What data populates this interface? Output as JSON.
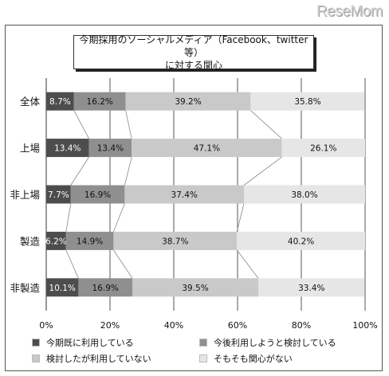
{
  "watermark": "ReseMom",
  "chart_data": {
    "type": "bar",
    "orientation": "horizontal",
    "stacked": true,
    "title_lines": [
      "今期採用のソーシャルメディア（Facebook、twitter等）",
      "に対する関心"
    ],
    "categories": [
      "全体",
      "上場",
      "非上場",
      "製造",
      "非製造"
    ],
    "series": [
      {
        "name": "今期既に利用している",
        "values": [
          8.7,
          13.4,
          7.7,
          6.2,
          10.1
        ],
        "color": "#4d4d4d",
        "label_color": "#ffffff"
      },
      {
        "name": "今後利用しようと検討している",
        "values": [
          16.2,
          13.4,
          16.9,
          14.9,
          16.9
        ],
        "color": "#8f8f8f",
        "label_color": "#111111"
      },
      {
        "name": "検討したが利用していない",
        "values": [
          39.2,
          47.1,
          37.4,
          38.7,
          39.5
        ],
        "color": "#c9c9c9",
        "label_color": "#111111"
      },
      {
        "name": "そもそも関心がない",
        "values": [
          35.8,
          26.1,
          38.0,
          40.2,
          33.4
        ],
        "color": "#e6e6e6",
        "label_color": "#111111"
      }
    ],
    "value_labels": [
      [
        "8.7%",
        "13.4%",
        "7.7%",
        "6.2%",
        "10.1%"
      ],
      [
        "16.2%",
        "13.4%",
        "16.9%",
        "14.9%",
        "16.9%"
      ],
      [
        "39.2%",
        "47.1%",
        "37.4%",
        "38.7%",
        "39.5%"
      ],
      [
        "35.8%",
        "26.1%",
        "38.0%",
        "40.2%",
        "33.4%"
      ]
    ],
    "x_ticks": [
      "0%",
      "20%",
      "40%",
      "60%",
      "80%",
      "100%"
    ],
    "xlim": [
      0,
      100
    ],
    "grid": true,
    "legend_position": "bottom",
    "series_connector_lines": true
  }
}
